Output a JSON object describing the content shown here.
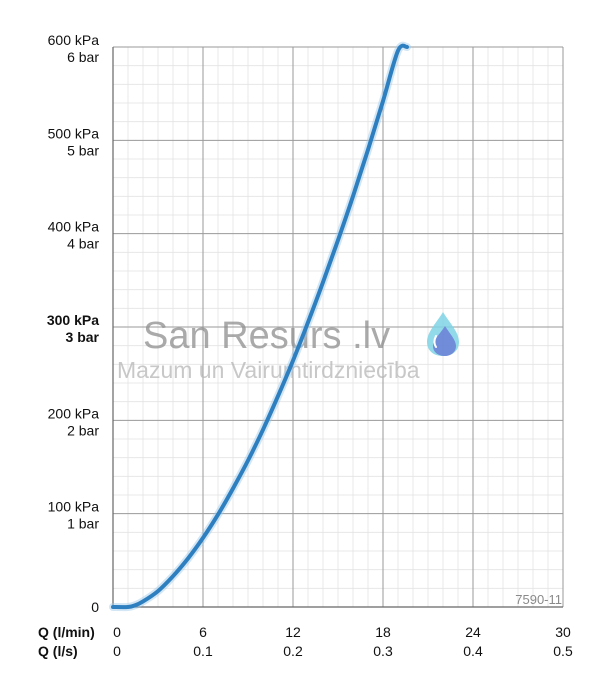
{
  "chart_data": {
    "type": "line",
    "x_rows": [
      {
        "label": "Q (l/min)",
        "ticks": [
          "0",
          "6",
          "12",
          "18",
          "24",
          "30"
        ]
      },
      {
        "label": "Q (l/s)",
        "ticks": [
          "0",
          "0.1",
          "0.2",
          "0.3",
          "0.4",
          "0.5"
        ]
      }
    ],
    "y_ticks": [
      {
        "kpa": "600 kPa",
        "bar": "6 bar",
        "value": 600,
        "bold": false
      },
      {
        "kpa": "500 kPa",
        "bar": "5 bar",
        "value": 500,
        "bold": false
      },
      {
        "kpa": "400 kPa",
        "bar": "4 bar",
        "value": 400,
        "bold": false
      },
      {
        "kpa": "300 kPa",
        "bar": "3 bar",
        "value": 300,
        "bold": true
      },
      {
        "kpa": "200 kPa",
        "bar": "2 bar",
        "value": 200,
        "bold": false
      },
      {
        "kpa": "100 kPa",
        "bar": "1 bar",
        "value": 100,
        "bold": false
      },
      {
        "kpa": "0",
        "bar": "",
        "value": 0,
        "bold": false
      }
    ],
    "xlim": [
      0,
      30
    ],
    "ylim": [
      0,
      600
    ],
    "grid": true,
    "series": [
      {
        "color": "#2e7fc0",
        "x": [
          0,
          1,
          1.5,
          2,
          3,
          4,
          5,
          6,
          7,
          8,
          9,
          10,
          11,
          12,
          13,
          14,
          15,
          16,
          17,
          18,
          19,
          19.6
        ],
        "y": [
          0,
          0,
          2,
          6,
          17,
          33,
          52,
          74,
          99,
          127,
          157,
          190,
          226,
          264,
          305,
          348,
          393,
          440,
          490,
          542,
          596,
          600
        ]
      }
    ],
    "annotation": "7590-11"
  },
  "watermark": {
    "title": "San Resurs .lv",
    "subtitle": "Mazum un Vairumtirdzniecība",
    "icon": "water-drop-icon",
    "colors": {
      "drop_light": "#7fd3e6",
      "drop_dark": "#6b7fd6"
    }
  }
}
